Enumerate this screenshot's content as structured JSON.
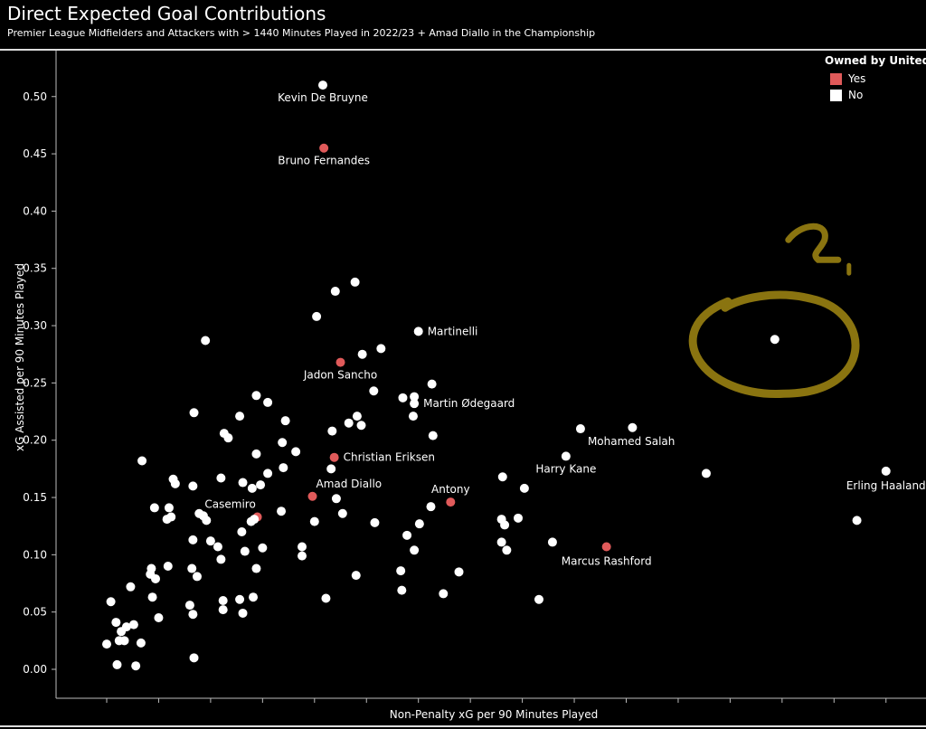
{
  "chart_data": {
    "type": "scatter",
    "title": "Direct Expected Goal Contributions",
    "subtitle": "Premier League Midfielders and Attackers with > 1440 Minutes Played in 2022/23 + Amad Diallo in the Championship",
    "xlabel": "Non-Penalty xG per 90 Minutes Played",
    "ylabel": "xG Assisted per 90 Minutes Played",
    "xlim": [
      -0.04,
      0.79
    ],
    "ylim": [
      -0.01,
      0.53
    ],
    "x_ticks": [
      "0.00",
      "0.05",
      "0.10",
      "0.15",
      "0.20",
      "0.25",
      "0.30",
      "0.35",
      "0.40",
      "0.45",
      "0.50",
      "0.55",
      "0.60",
      "0.65",
      "0.70",
      "0.75"
    ],
    "y_ticks": [
      "0.00",
      "0.05",
      "0.10",
      "0.15",
      "0.20",
      "0.25",
      "0.30",
      "0.35",
      "0.40",
      "0.45",
      "0.50"
    ],
    "grid": false,
    "legend": {
      "title": "Owned by United",
      "placement": "top-right",
      "entries": [
        {
          "label": "Yes",
          "color": "#e05a5a"
        },
        {
          "label": "No",
          "color": "#ffffff"
        }
      ]
    },
    "series": [
      {
        "name": "Yes",
        "color": "#e05a5a",
        "points": [
          {
            "x": 0.209,
            "y": 0.455,
            "label": "Bruno Fernandes"
          },
          {
            "x": 0.225,
            "y": 0.268,
            "label": "Jadon Sancho"
          },
          {
            "x": 0.219,
            "y": 0.185,
            "label": "Christian Eriksen"
          },
          {
            "x": 0.198,
            "y": 0.151,
            "label": "Amad Diallo"
          },
          {
            "x": 0.331,
            "y": 0.146,
            "label": "Antony"
          },
          {
            "x": 0.481,
            "y": 0.107,
            "label": "Marcus Rashford"
          },
          {
            "x": 0.145,
            "y": 0.133,
            "label": "Casemiro"
          }
        ]
      },
      {
        "name": "No",
        "color": "#ffffff",
        "points": [
          {
            "x": 0.208,
            "y": 0.51,
            "label": "Kevin De Bruyne"
          },
          {
            "x": 0.3,
            "y": 0.295,
            "label": "Martinelli"
          },
          {
            "x": 0.296,
            "y": 0.232,
            "label": "Martin Ødegaard"
          },
          {
            "x": 0.456,
            "y": 0.21,
            "label": "Mohamed Salah"
          },
          {
            "x": 0.442,
            "y": 0.186,
            "label": "Harry Kane"
          },
          {
            "x": 0.75,
            "y": 0.173,
            "label": "Erling Haaland"
          },
          {
            "x": 0.643,
            "y": 0.288
          },
          {
            "x": 0.506,
            "y": 0.211
          },
          {
            "x": 0.577,
            "y": 0.171
          },
          {
            "x": 0.722,
            "y": 0.13
          },
          {
            "x": 0.239,
            "y": 0.338
          },
          {
            "x": 0.22,
            "y": 0.33
          },
          {
            "x": 0.202,
            "y": 0.308
          },
          {
            "x": 0.095,
            "y": 0.287
          },
          {
            "x": 0.246,
            "y": 0.275
          },
          {
            "x": 0.264,
            "y": 0.28
          },
          {
            "x": 0.313,
            "y": 0.249
          },
          {
            "x": 0.257,
            "y": 0.243
          },
          {
            "x": 0.285,
            "y": 0.237
          },
          {
            "x": 0.296,
            "y": 0.238
          },
          {
            "x": 0.144,
            "y": 0.239
          },
          {
            "x": 0.155,
            "y": 0.233
          },
          {
            "x": 0.084,
            "y": 0.224
          },
          {
            "x": 0.128,
            "y": 0.221
          },
          {
            "x": 0.172,
            "y": 0.217
          },
          {
            "x": 0.241,
            "y": 0.221
          },
          {
            "x": 0.233,
            "y": 0.215
          },
          {
            "x": 0.245,
            "y": 0.213
          },
          {
            "x": 0.295,
            "y": 0.221
          },
          {
            "x": 0.217,
            "y": 0.208
          },
          {
            "x": 0.113,
            "y": 0.206
          },
          {
            "x": 0.117,
            "y": 0.202
          },
          {
            "x": 0.314,
            "y": 0.204
          },
          {
            "x": 0.169,
            "y": 0.198
          },
          {
            "x": 0.144,
            "y": 0.188
          },
          {
            "x": 0.182,
            "y": 0.19
          },
          {
            "x": 0.034,
            "y": 0.182
          },
          {
            "x": 0.17,
            "y": 0.176
          },
          {
            "x": 0.216,
            "y": 0.175
          },
          {
            "x": 0.155,
            "y": 0.171
          },
          {
            "x": 0.11,
            "y": 0.167
          },
          {
            "x": 0.064,
            "y": 0.166
          },
          {
            "x": 0.066,
            "y": 0.162
          },
          {
            "x": 0.131,
            "y": 0.163
          },
          {
            "x": 0.148,
            "y": 0.161
          },
          {
            "x": 0.083,
            "y": 0.16
          },
          {
            "x": 0.14,
            "y": 0.158
          },
          {
            "x": 0.381,
            "y": 0.168
          },
          {
            "x": 0.402,
            "y": 0.158
          },
          {
            "x": 0.221,
            "y": 0.149
          },
          {
            "x": 0.312,
            "y": 0.142
          },
          {
            "x": 0.046,
            "y": 0.141
          },
          {
            "x": 0.06,
            "y": 0.141
          },
          {
            "x": 0.168,
            "y": 0.138
          },
          {
            "x": 0.089,
            "y": 0.136
          },
          {
            "x": 0.227,
            "y": 0.136
          },
          {
            "x": 0.093,
            "y": 0.134
          },
          {
            "x": 0.062,
            "y": 0.133
          },
          {
            "x": 0.058,
            "y": 0.131
          },
          {
            "x": 0.142,
            "y": 0.131
          },
          {
            "x": 0.139,
            "y": 0.129
          },
          {
            "x": 0.096,
            "y": 0.13
          },
          {
            "x": 0.38,
            "y": 0.131
          },
          {
            "x": 0.396,
            "y": 0.132
          },
          {
            "x": 0.2,
            "y": 0.129
          },
          {
            "x": 0.258,
            "y": 0.128
          },
          {
            "x": 0.301,
            "y": 0.127
          },
          {
            "x": 0.383,
            "y": 0.126
          },
          {
            "x": 0.13,
            "y": 0.12
          },
          {
            "x": 0.289,
            "y": 0.117
          },
          {
            "x": 0.083,
            "y": 0.113
          },
          {
            "x": 0.1,
            "y": 0.112
          },
          {
            "x": 0.38,
            "y": 0.111
          },
          {
            "x": 0.429,
            "y": 0.111
          },
          {
            "x": 0.107,
            "y": 0.107
          },
          {
            "x": 0.188,
            "y": 0.107
          },
          {
            "x": 0.15,
            "y": 0.106
          },
          {
            "x": 0.296,
            "y": 0.104
          },
          {
            "x": 0.385,
            "y": 0.104
          },
          {
            "x": 0.133,
            "y": 0.103
          },
          {
            "x": 0.188,
            "y": 0.099
          },
          {
            "x": 0.11,
            "y": 0.096
          },
          {
            "x": 0.059,
            "y": 0.09
          },
          {
            "x": 0.043,
            "y": 0.088
          },
          {
            "x": 0.082,
            "y": 0.088
          },
          {
            "x": 0.144,
            "y": 0.088
          },
          {
            "x": 0.042,
            "y": 0.083
          },
          {
            "x": 0.339,
            "y": 0.085
          },
          {
            "x": 0.283,
            "y": 0.086
          },
          {
            "x": 0.047,
            "y": 0.079
          },
          {
            "x": 0.24,
            "y": 0.082
          },
          {
            "x": 0.087,
            "y": 0.081
          },
          {
            "x": 0.023,
            "y": 0.072
          },
          {
            "x": 0.284,
            "y": 0.069
          },
          {
            "x": 0.324,
            "y": 0.066
          },
          {
            "x": 0.044,
            "y": 0.063
          },
          {
            "x": 0.141,
            "y": 0.063
          },
          {
            "x": 0.211,
            "y": 0.062
          },
          {
            "x": 0.004,
            "y": 0.059
          },
          {
            "x": 0.112,
            "y": 0.06
          },
          {
            "x": 0.128,
            "y": 0.061
          },
          {
            "x": 0.416,
            "y": 0.061
          },
          {
            "x": 0.08,
            "y": 0.056
          },
          {
            "x": 0.112,
            "y": 0.052
          },
          {
            "x": 0.083,
            "y": 0.048
          },
          {
            "x": 0.131,
            "y": 0.049
          },
          {
            "x": 0.05,
            "y": 0.045
          },
          {
            "x": 0.009,
            "y": 0.041
          },
          {
            "x": 0.026,
            "y": 0.039
          },
          {
            "x": 0.019,
            "y": 0.037
          },
          {
            "x": 0.014,
            "y": 0.033
          },
          {
            "x": 0.012,
            "y": 0.025
          },
          {
            "x": 0.017,
            "y": 0.025
          },
          {
            "x": 0.033,
            "y": 0.023
          },
          {
            "x": 0.0,
            "y": 0.022
          },
          {
            "x": 0.084,
            "y": 0.01
          },
          {
            "x": 0.01,
            "y": 0.004
          },
          {
            "x": 0.028,
            "y": 0.003
          }
        ]
      }
    ],
    "annotation": {
      "text": "?",
      "color": "#8a7410",
      "target": {
        "x": 0.643,
        "y": 0.288
      }
    }
  }
}
